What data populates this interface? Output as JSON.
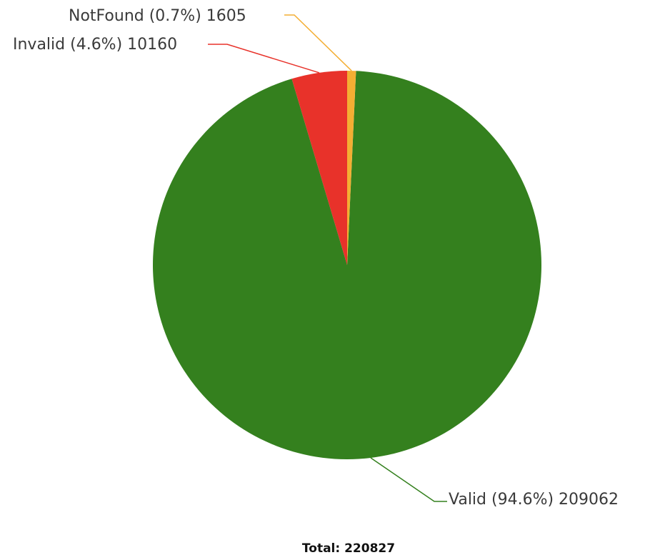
{
  "chart_data": {
    "type": "pie",
    "slices": [
      {
        "name": "Valid",
        "value": 209062,
        "percent": "94.6%",
        "label": "Valid (94.6%) 209062",
        "color": "#34801e"
      },
      {
        "name": "Invalid",
        "value": 10160,
        "percent": "4.6%",
        "label": "Invalid (4.6%) 10160",
        "color": "#e8322a"
      },
      {
        "name": "NotFound",
        "value": 1605,
        "percent": "0.7%",
        "label": "NotFound (0.7%) 1605",
        "color": "#f4ae33"
      }
    ],
    "total_label": "Total: 220827"
  }
}
